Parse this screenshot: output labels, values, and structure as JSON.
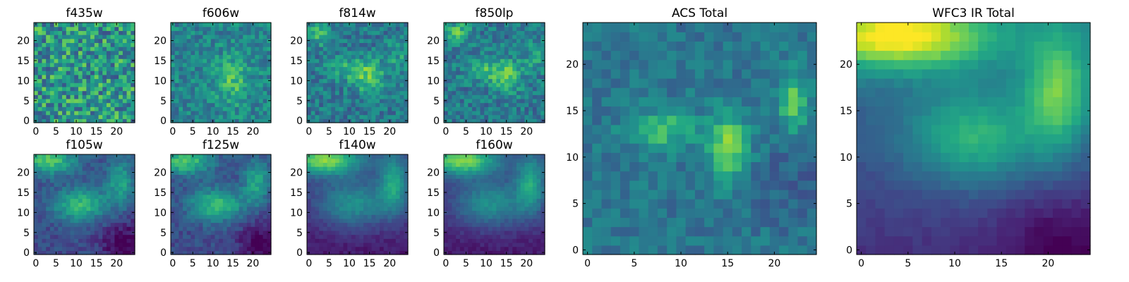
{
  "colormap": "viridis",
  "chart_data": [
    {
      "type": "heatmap",
      "title": "f435w",
      "size": 25,
      "pattern": "noise",
      "xticks": [
        0,
        5,
        10,
        15,
        20
      ],
      "yticks": [
        0,
        5,
        10,
        15,
        20
      ],
      "xlim": [
        -0.5,
        24.5
      ],
      "ylim": [
        -0.5,
        24.5
      ]
    },
    {
      "type": "heatmap",
      "title": "f606w",
      "size": 25,
      "pattern": "noise-faint",
      "xticks": [
        0,
        5,
        10,
        15,
        20
      ],
      "yticks": [
        0,
        5,
        10,
        15,
        20
      ],
      "xlim": [
        -0.5,
        24.5
      ],
      "ylim": [
        -0.5,
        24.5
      ]
    },
    {
      "type": "heatmap",
      "title": "f814w",
      "size": 25,
      "pattern": "optical",
      "xticks": [
        0,
        5,
        10,
        15,
        20
      ],
      "yticks": [
        0,
        5,
        10,
        15,
        20
      ],
      "xlim": [
        -0.5,
        24.5
      ],
      "ylim": [
        -0.5,
        24.5
      ]
    },
    {
      "type": "heatmap",
      "title": "f850lp",
      "size": 25,
      "pattern": "optical",
      "xticks": [
        0,
        5,
        10,
        15,
        20
      ],
      "yticks": [
        0,
        5,
        10,
        15,
        20
      ],
      "xlim": [
        -0.5,
        24.5
      ],
      "ylim": [
        -0.5,
        24.5
      ]
    },
    {
      "type": "heatmap",
      "title": "f105w",
      "size": 25,
      "pattern": "ir",
      "xticks": [
        0,
        5,
        10,
        15,
        20
      ],
      "yticks": [
        0,
        5,
        10,
        15,
        20
      ],
      "xlim": [
        -0.5,
        24.5
      ],
      "ylim": [
        -0.5,
        24.5
      ]
    },
    {
      "type": "heatmap",
      "title": "f125w",
      "size": 25,
      "pattern": "ir",
      "xticks": [
        0,
        5,
        10,
        15,
        20
      ],
      "yticks": [
        0,
        5,
        10,
        15,
        20
      ],
      "xlim": [
        -0.5,
        24.5
      ],
      "ylim": [
        -0.5,
        24.5
      ]
    },
    {
      "type": "heatmap",
      "title": "f140w",
      "size": 25,
      "pattern": "ir-smooth",
      "xticks": [
        0,
        5,
        10,
        15,
        20
      ],
      "yticks": [
        0,
        5,
        10,
        15,
        20
      ],
      "xlim": [
        -0.5,
        24.5
      ],
      "ylim": [
        -0.5,
        24.5
      ]
    },
    {
      "type": "heatmap",
      "title": "f160w",
      "size": 25,
      "pattern": "ir-smooth",
      "xticks": [
        0,
        5,
        10,
        15,
        20
      ],
      "yticks": [
        0,
        5,
        10,
        15,
        20
      ],
      "xlim": [
        -0.5,
        24.5
      ],
      "ylim": [
        -0.5,
        24.5
      ]
    },
    {
      "type": "heatmap",
      "title": "ACS Total",
      "size": 25,
      "pattern": "acs-total",
      "xticks": [
        0,
        5,
        10,
        15,
        20
      ],
      "yticks": [
        0,
        5,
        10,
        15,
        20
      ],
      "xlim": [
        -0.5,
        24.5
      ],
      "ylim": [
        -0.5,
        24.5
      ]
    },
    {
      "type": "heatmap",
      "title": "WFC3 IR Total",
      "size": 25,
      "pattern": "ir-total",
      "xticks": [
        0,
        5,
        10,
        15,
        20
      ],
      "yticks": [
        0,
        5,
        10,
        15,
        20
      ],
      "xlim": [
        -0.5,
        24.5
      ],
      "ylim": [
        -0.5,
        24.5
      ]
    }
  ]
}
